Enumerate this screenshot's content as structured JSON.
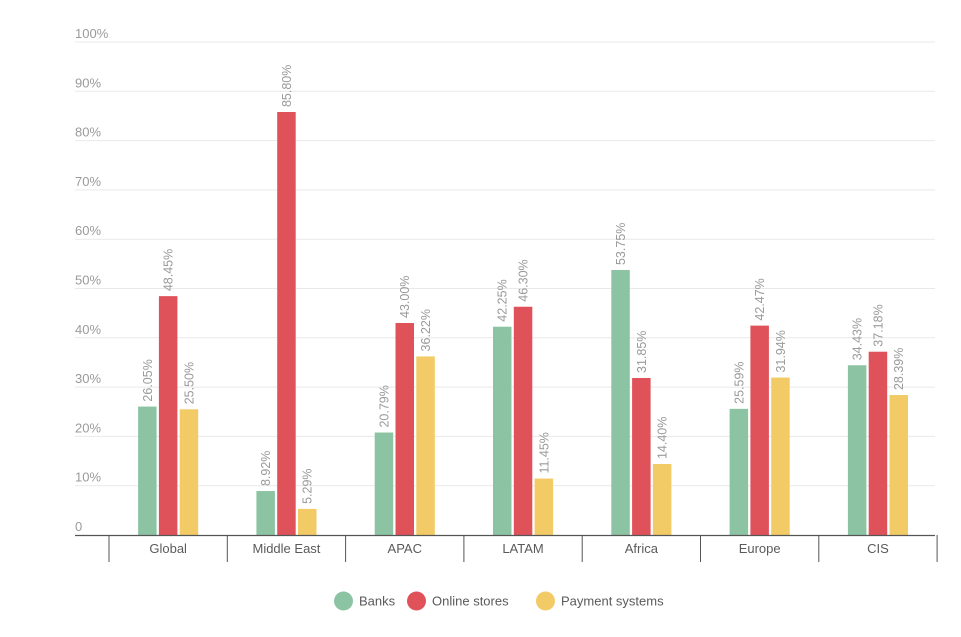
{
  "chart_data": {
    "type": "bar",
    "categories": [
      "Global",
      "Middle East",
      "APAC",
      "LATAM",
      "Africa",
      "Europe",
      "CIS"
    ],
    "series": [
      {
        "name": "Banks",
        "color": "#8cc4a3",
        "values": [
          26.05,
          8.92,
          20.79,
          42.25,
          53.75,
          25.59,
          34.43
        ],
        "labels": [
          "26.05%",
          "8.92%",
          "20.79%",
          "42.25%",
          "53.75%",
          "25.59%",
          "34.43%"
        ]
      },
      {
        "name": "Online stores",
        "color": "#e0525a",
        "values": [
          48.45,
          85.8,
          43.0,
          46.3,
          31.85,
          42.47,
          37.18
        ],
        "labels": [
          "48.45%",
          "85.80%",
          "43.00%",
          "46.30%",
          "31.85%",
          "42.47%",
          "37.18%"
        ]
      },
      {
        "name": "Payment systems",
        "color": "#f2cb66",
        "values": [
          25.5,
          5.29,
          36.22,
          11.45,
          14.4,
          31.94,
          28.39
        ],
        "labels": [
          "25.50%",
          "5.29%",
          "36.22%",
          "11.45%",
          "14.40%",
          "31.94%",
          "28.39%"
        ]
      }
    ],
    "y_ticks": [
      {
        "value": 0,
        "label": "0"
      },
      {
        "value": 10,
        "label": "10%"
      },
      {
        "value": 20,
        "label": "20%"
      },
      {
        "value": 30,
        "label": "30%"
      },
      {
        "value": 40,
        "label": "40%"
      },
      {
        "value": 50,
        "label": "50%"
      },
      {
        "value": 60,
        "label": "60%"
      },
      {
        "value": 70,
        "label": "70%"
      },
      {
        "value": 80,
        "label": "80%"
      },
      {
        "value": 90,
        "label": "90%"
      },
      {
        "value": 100,
        "label": "100%"
      }
    ],
    "ylim": [
      0,
      100
    ],
    "grid": true,
    "legend_position": "bottom-center",
    "title": "",
    "xlabel": "",
    "ylabel": ""
  }
}
